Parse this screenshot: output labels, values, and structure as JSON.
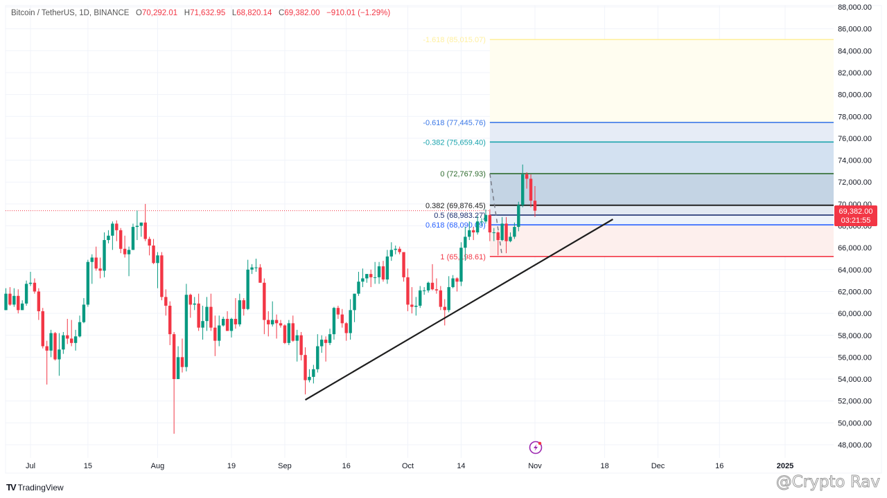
{
  "legend": {
    "symbol": "Bitcoin / TetherUS, 1D, BINANCE",
    "o_label": "O",
    "o": "70,292.01",
    "h_label": "H",
    "h": "71,632.95",
    "l_label": "L",
    "l": "68,820.14",
    "c_label": "C",
    "c": "69,382.00",
    "change": "−910.01 (−1.29%)"
  },
  "price_tag": {
    "price": "69,382.00",
    "countdown": "03:21:55"
  },
  "branding": {
    "logo_text": "TradingView",
    "logo_mark": "TV",
    "watermark": "@Crypto Rav"
  },
  "icons": {
    "event": "lightning-bolt-icon"
  },
  "colors": {
    "up": "#089981",
    "down": "#f23645",
    "trendline": "#1e1e1e",
    "last_price": "#f23645",
    "event_icon": "#9c27b0"
  },
  "chart_data": {
    "type": "candlestick",
    "ylim": [
      48000,
      88000
    ],
    "y_ticks": [
      "88,000.00",
      "86,000.00",
      "84,000.00",
      "82,000.00",
      "80,000.00",
      "78,000.00",
      "76,000.00",
      "74,000.00",
      "72,000.00",
      "70,000.00",
      "68,000.00",
      "66,000.00",
      "64,000.00",
      "62,000.00",
      "60,000.00",
      "58,000.00",
      "56,000.00",
      "54,000.00",
      "52,000.00",
      "50,000.00",
      "48,000.00"
    ],
    "x_ticks": [
      {
        "label": "Jul",
        "date": "2024-07-01"
      },
      {
        "label": "15",
        "date": "2024-07-15"
      },
      {
        "label": "Aug",
        "date": "2024-08-01"
      },
      {
        "label": "19",
        "date": "2024-08-19"
      },
      {
        "label": "Sep",
        "date": "2024-09-01"
      },
      {
        "label": "16",
        "date": "2024-09-16"
      },
      {
        "label": "Oct",
        "date": "2024-10-01"
      },
      {
        "label": "14",
        "date": "2024-10-14"
      },
      {
        "label": "Nov",
        "date": "2024-11-01"
      },
      {
        "label": "18",
        "date": "2024-11-18"
      },
      {
        "label": "Dec",
        "date": "2024-12-01"
      },
      {
        "label": "16",
        "date": "2024-12-16"
      },
      {
        "label": "2025",
        "date": "2025-01-01"
      }
    ],
    "grid": true,
    "last_price": 69382.0,
    "candles": [
      [
        "2024-06-25",
        60300,
        62300,
        60300,
        61800
      ],
      [
        "2024-06-26",
        61800,
        62400,
        60700,
        60800
      ],
      [
        "2024-06-27",
        60800,
        62300,
        60600,
        61600
      ],
      [
        "2024-06-28",
        61600,
        62200,
        60000,
        60300
      ],
      [
        "2024-06-29",
        60300,
        61200,
        60300,
        60900
      ],
      [
        "2024-06-30",
        60900,
        63000,
        60700,
        62700
      ],
      [
        "2024-07-01",
        62700,
        63800,
        62500,
        62800
      ],
      [
        "2024-07-02",
        62800,
        63200,
        61800,
        62000
      ],
      [
        "2024-07-03",
        62000,
        62300,
        59400,
        60200
      ],
      [
        "2024-07-04",
        60200,
        60500,
        56800,
        57000
      ],
      [
        "2024-07-05",
        57000,
        57500,
        53500,
        56600
      ],
      [
        "2024-07-06",
        56600,
        58500,
        56000,
        58200
      ],
      [
        "2024-07-07",
        58200,
        58300,
        55700,
        55800
      ],
      [
        "2024-07-08",
        55800,
        58200,
        54300,
        56700
      ],
      [
        "2024-07-09",
        56700,
        58300,
        56300,
        58000
      ],
      [
        "2024-07-10",
        58000,
        59500,
        57200,
        57700
      ],
      [
        "2024-07-11",
        57700,
        59400,
        57000,
        57300
      ],
      [
        "2024-07-12",
        57300,
        58500,
        56600,
        57900
      ],
      [
        "2024-07-13",
        57900,
        59800,
        57800,
        59200
      ],
      [
        "2024-07-14",
        59200,
        61400,
        59100,
        60800
      ],
      [
        "2024-07-15",
        60800,
        64900,
        60600,
        64700
      ],
      [
        "2024-07-16",
        64700,
        65400,
        62700,
        65100
      ],
      [
        "2024-07-17",
        65100,
        66100,
        63900,
        64100
      ],
      [
        "2024-07-18",
        64100,
        65100,
        63200,
        63900
      ],
      [
        "2024-07-19",
        63900,
        67400,
        63300,
        66700
      ],
      [
        "2024-07-20",
        66700,
        67600,
        66400,
        67100
      ],
      [
        "2024-07-21",
        67100,
        68400,
        65800,
        68200
      ],
      [
        "2024-07-22",
        68200,
        68500,
        66600,
        67600
      ],
      [
        "2024-07-23",
        67600,
        67800,
        65500,
        65900
      ],
      [
        "2024-07-24",
        65900,
        67100,
        65100,
        65400
      ],
      [
        "2024-07-25",
        65400,
        66100,
        63400,
        65800
      ],
      [
        "2024-07-26",
        65800,
        68200,
        65800,
        67900
      ],
      [
        "2024-07-27",
        67900,
        69400,
        66700,
        68000
      ],
      [
        "2024-07-28",
        68000,
        68300,
        67000,
        68300
      ],
      [
        "2024-07-29",
        68300,
        70000,
        66600,
        66800
      ],
      [
        "2024-07-30",
        66800,
        67000,
        65300,
        66200
      ],
      [
        "2024-07-31",
        66200,
        66800,
        64500,
        64600
      ],
      [
        "2024-08-01",
        64600,
        65600,
        62300,
        65300
      ],
      [
        "2024-08-02",
        65300,
        65600,
        61200,
        61500
      ],
      [
        "2024-08-03",
        61500,
        62200,
        59800,
        60700
      ],
      [
        "2024-08-04",
        60700,
        61100,
        57100,
        58100
      ],
      [
        "2024-08-05",
        58100,
        58300,
        49000,
        54000
      ],
      [
        "2024-08-06",
        54000,
        57000,
        54000,
        56000
      ],
      [
        "2024-08-07",
        56000,
        57700,
        54600,
        55100
      ],
      [
        "2024-08-08",
        55100,
        62700,
        54700,
        61700
      ],
      [
        "2024-08-09",
        61700,
        61800,
        59600,
        60800
      ],
      [
        "2024-08-10",
        60800,
        61500,
        60300,
        60900
      ],
      [
        "2024-08-11",
        60900,
        61800,
        58400,
        58700
      ],
      [
        "2024-08-12",
        58700,
        60700,
        57600,
        59300
      ],
      [
        "2024-08-13",
        59300,
        61500,
        58400,
        60600
      ],
      [
        "2024-08-14",
        60600,
        61800,
        58400,
        58700
      ],
      [
        "2024-08-15",
        58700,
        59800,
        56100,
        57500
      ],
      [
        "2024-08-16",
        57500,
        59800,
        57000,
        58900
      ],
      [
        "2024-08-17",
        58900,
        59700,
        58800,
        59500
      ],
      [
        "2024-08-18",
        59500,
        60200,
        58400,
        58400
      ],
      [
        "2024-08-19",
        58400,
        59600,
        57800,
        59500
      ],
      [
        "2024-08-20",
        59500,
        61400,
        58600,
        59000
      ],
      [
        "2024-08-21",
        59000,
        61800,
        58800,
        61200
      ],
      [
        "2024-08-22",
        61200,
        61400,
        59800,
        60400
      ],
      [
        "2024-08-23",
        60400,
        64900,
        60300,
        64000
      ],
      [
        "2024-08-24",
        64000,
        64500,
        63600,
        64200
      ],
      [
        "2024-08-25",
        64200,
        65000,
        63800,
        64200
      ],
      [
        "2024-08-26",
        64200,
        64500,
        62800,
        62800
      ],
      [
        "2024-08-27",
        62800,
        63200,
        58100,
        59400
      ],
      [
        "2024-08-28",
        59400,
        60200,
        57900,
        59000
      ],
      [
        "2024-08-29",
        59000,
        61100,
        58800,
        59400
      ],
      [
        "2024-08-30",
        59400,
        59900,
        57700,
        59100
      ],
      [
        "2024-08-31",
        59100,
        59400,
        58700,
        58900
      ],
      [
        "2024-09-01",
        58900,
        59000,
        57200,
        57300
      ],
      [
        "2024-09-02",
        57300,
        59400,
        57100,
        59100
      ],
      [
        "2024-09-03",
        59100,
        59800,
        57400,
        57500
      ],
      [
        "2024-09-04",
        57500,
        58500,
        55600,
        58000
      ],
      [
        "2024-09-05",
        58000,
        58300,
        55700,
        56200
      ],
      [
        "2024-09-06",
        56200,
        56900,
        52600,
        53900
      ],
      [
        "2024-09-07",
        53900,
        54900,
        53700,
        54200
      ],
      [
        "2024-09-08",
        54200,
        55300,
        53600,
        54900
      ],
      [
        "2024-09-09",
        54900,
        58100,
        54600,
        57000
      ],
      [
        "2024-09-10",
        57000,
        58000,
        56400,
        57600
      ],
      [
        "2024-09-11",
        57600,
        57900,
        55600,
        57300
      ],
      [
        "2024-09-12",
        57300,
        58600,
        57100,
        58100
      ],
      [
        "2024-09-13",
        58100,
        60600,
        57600,
        60500
      ],
      [
        "2024-09-14",
        60500,
        60700,
        59500,
        59900
      ],
      [
        "2024-09-15",
        59900,
        60400,
        58700,
        59100
      ],
      [
        "2024-09-16",
        59100,
        59200,
        57500,
        58200
      ],
      [
        "2024-09-17",
        58200,
        61300,
        57600,
        60300
      ],
      [
        "2024-09-18",
        60300,
        61800,
        59200,
        61800
      ],
      [
        "2024-09-19",
        61800,
        63800,
        61600,
        62900
      ],
      [
        "2024-09-20",
        62900,
        64100,
        62400,
        63200
      ],
      [
        "2024-09-21",
        63200,
        63600,
        62800,
        63600
      ],
      [
        "2024-09-22",
        63600,
        64000,
        62400,
        63300
      ],
      [
        "2024-09-23",
        63300,
        64700,
        62700,
        63300
      ],
      [
        "2024-09-24",
        63300,
        64700,
        62700,
        64300
      ],
      [
        "2024-09-25",
        64300,
        64800,
        62900,
        63100
      ],
      [
        "2024-09-26",
        63100,
        65800,
        62700,
        65200
      ],
      [
        "2024-09-27",
        65200,
        66500,
        64800,
        65800
      ],
      [
        "2024-09-28",
        65800,
        66200,
        65400,
        65900
      ],
      [
        "2024-09-29",
        65900,
        66100,
        65400,
        65600
      ],
      [
        "2024-09-30",
        65600,
        65600,
        62900,
        63300
      ],
      [
        "2024-10-01",
        63300,
        64100,
        60200,
        60800
      ],
      [
        "2024-10-02",
        60800,
        62400,
        60000,
        60600
      ],
      [
        "2024-10-03",
        60600,
        61500,
        59800,
        60700
      ],
      [
        "2024-10-04",
        60700,
        62500,
        60500,
        62100
      ],
      [
        "2024-10-05",
        62100,
        62400,
        61700,
        62100
      ],
      [
        "2024-10-06",
        62100,
        62900,
        61900,
        62800
      ],
      [
        "2024-10-07",
        62800,
        64500,
        62100,
        62200
      ],
      [
        "2024-10-08",
        62200,
        63200,
        61800,
        62100
      ],
      [
        "2024-10-09",
        62100,
        62500,
        60300,
        60600
      ],
      [
        "2024-10-10",
        60600,
        61300,
        58900,
        60300
      ],
      [
        "2024-10-11",
        60300,
        63400,
        60100,
        62400
      ],
      [
        "2024-10-12",
        62400,
        63500,
        62300,
        63200
      ],
      [
        "2024-10-13",
        63200,
        63300,
        62000,
        62900
      ],
      [
        "2024-10-14",
        62900,
        66500,
        62500,
        66000
      ],
      [
        "2024-10-15",
        66000,
        67900,
        64800,
        67000
      ],
      [
        "2024-10-16",
        67000,
        68400,
        66700,
        67600
      ],
      [
        "2024-10-17",
        67600,
        67900,
        66700,
        67400
      ],
      [
        "2024-10-18",
        67400,
        68900,
        67200,
        68400
      ],
      [
        "2024-10-19",
        68400,
        68700,
        68000,
        68400
      ],
      [
        "2024-10-20",
        68400,
        69500,
        68200,
        69000
      ],
      [
        "2024-10-21",
        69000,
        69500,
        66600,
        67400
      ],
      [
        "2024-10-22",
        67400,
        67800,
        66600,
        67400
      ],
      [
        "2024-10-23",
        67400,
        67500,
        65300,
        66700
      ],
      [
        "2024-10-24",
        66700,
        68800,
        66600,
        68200
      ],
      [
        "2024-10-25",
        68200,
        68800,
        65500,
        66600
      ],
      [
        "2024-10-26",
        66600,
        67400,
        66500,
        67000
      ],
      [
        "2024-10-27",
        67000,
        68300,
        66800,
        67900
      ],
      [
        "2024-10-28",
        67900,
        70200,
        67500,
        69900
      ],
      [
        "2024-10-29",
        69900,
        73600,
        69700,
        72700
      ],
      [
        "2024-10-30",
        72700,
        72900,
        71400,
        72300
      ],
      [
        "2024-10-31",
        72300,
        72700,
        69700,
        70300
      ],
      [
        "2024-11-01",
        70292.01,
        71632.95,
        68820.14,
        69382.0
      ]
    ],
    "trendline": {
      "start": [
        "2024-09-06",
        52100
      ],
      "end": [
        "2024-11-20",
        68600
      ]
    },
    "fibonacci": {
      "start_date": "2024-10-21",
      "anchor_line": {
        "from": [
          "2024-10-21",
          72767.93
        ],
        "to": [
          "2024-10-24",
          65198.61
        ]
      },
      "levels": [
        {
          "ratio": "-1.618",
          "price": 85015.07,
          "label": "-1.618 (85,015.07)",
          "color": "#fff0a0",
          "fill": "#fffdf0"
        },
        {
          "ratio": "-0.618",
          "price": 77445.76,
          "label": "-0.618 (77,445.76)",
          "color": "#3b78e7",
          "fill": "#e6ecf6"
        },
        {
          "ratio": "-0.382",
          "price": 75659.4,
          "label": "-0.382 (75,659.40)",
          "color": "#1aa3ad",
          "fill": "#d3e1f1"
        },
        {
          "ratio": "0",
          "price": 72767.93,
          "label": "0 (72,767.93)",
          "color": "#2e6b2e",
          "fill": "#c4d4e4"
        },
        {
          "ratio": "0.382",
          "price": 69876.45,
          "label": "0.382 (69,876.45)",
          "color": "#222222",
          "fill": "#e2e9f2"
        },
        {
          "ratio": "0.5",
          "price": 68983.27,
          "label": "0.5 (68,983.27)",
          "color": "#1c2f70",
          "fill": "#eef3fa"
        },
        {
          "ratio": "0.618",
          "price": 68090.09,
          "label": "0.618 (68,090.09)",
          "color": "#2962ff",
          "fill": "#fdefed"
        },
        {
          "ratio": "1",
          "price": 65198.61,
          "label": "1 (65,198.61)",
          "color": "#f23645",
          "fill": null
        }
      ]
    }
  }
}
